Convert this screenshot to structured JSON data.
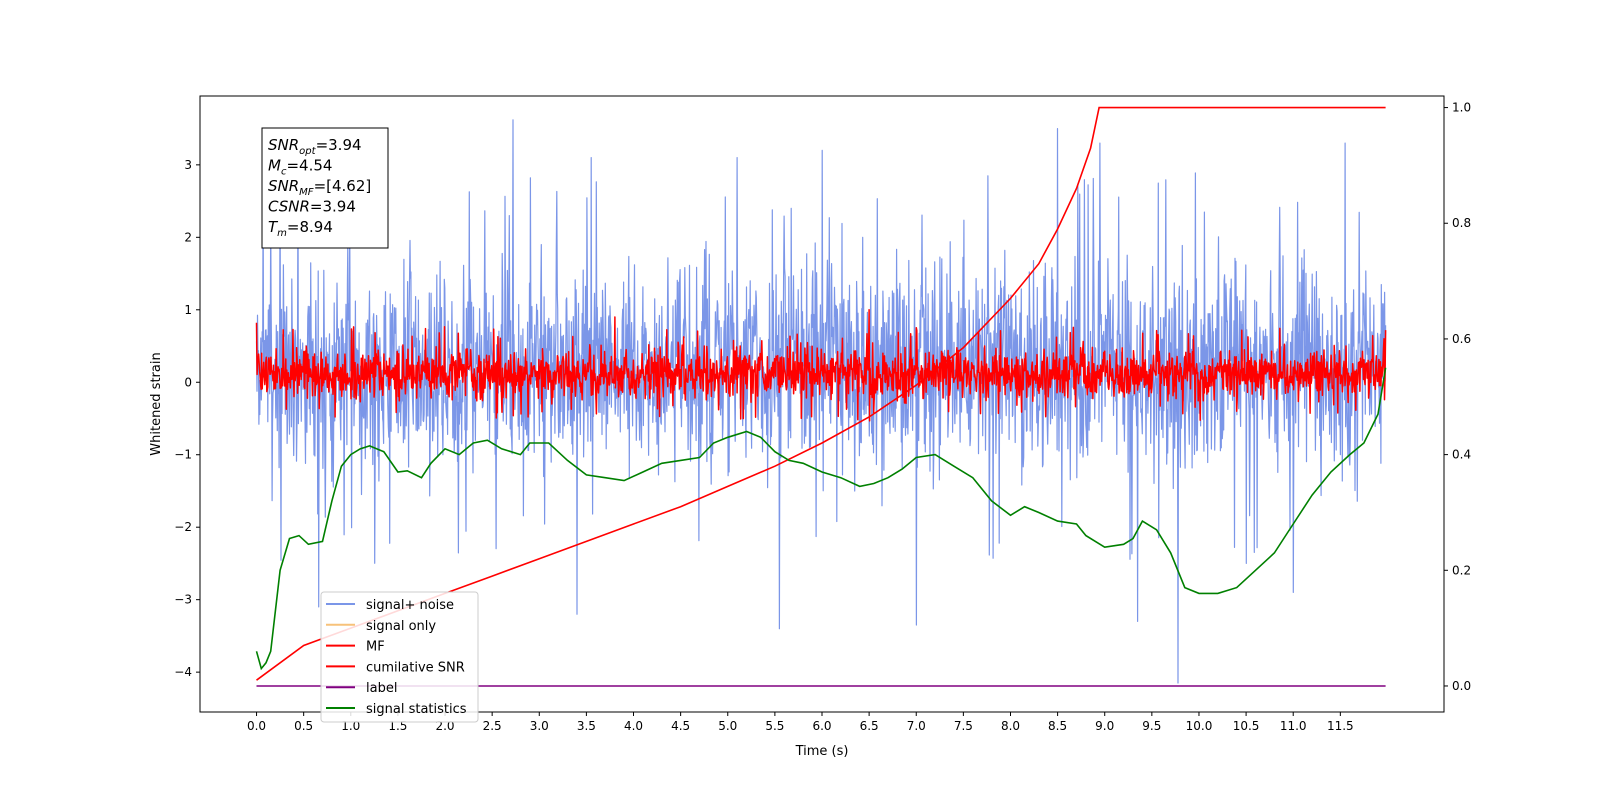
{
  "chart_data": {
    "type": "line",
    "xlabel": "Time (s)",
    "ylabel": "Whitened strain",
    "xlim": [
      -0.6,
      12.6
    ],
    "ylim": [
      -4.55,
      3.95
    ],
    "y2lim": [
      -0.045,
      1.02
    ],
    "xticks": [
      "0.0",
      "0.5",
      "1.0",
      "1.5",
      "2.0",
      "2.5",
      "3.0",
      "3.5",
      "4.0",
      "4.5",
      "5.0",
      "5.5",
      "6.0",
      "6.5",
      "7.0",
      "7.5",
      "8.0",
      "8.5",
      "9.0",
      "9.5",
      "10.0",
      "10.5",
      "11.0",
      "11.5"
    ],
    "yticks": [
      "3",
      "2",
      "1",
      "0",
      "−1",
      "−2",
      "−3",
      "−4"
    ],
    "y2ticks": [
      "1.0",
      "0.8",
      "0.6",
      "0.4",
      "0.2",
      "0.0"
    ],
    "legend_position": "lower-left",
    "annotation": [
      {
        "sym": "SNR",
        "sub": "opt",
        "value": "=3.94"
      },
      {
        "sym": "M",
        "sub": "c",
        "value": "=4.54"
      },
      {
        "sym": "SNR",
        "sub": "MF",
        "value": "=[4.62]"
      },
      {
        "sym": "CSNR",
        "sub": "",
        "value": "=3.94"
      },
      {
        "sym": "T",
        "sub": "m",
        "value": "=8.94"
      }
    ],
    "series": [
      {
        "name": "signal+ noise",
        "color": "#7b96e8",
        "axis": "left",
        "style": "noise",
        "noise_band": [
          -1.6,
          2.0
        ],
        "x_range": [
          0.0,
          11.98
        ],
        "spikes": [
          [
            2.72,
            3.62
          ],
          [
            0.66,
            -3.1
          ],
          [
            3.4,
            -3.2
          ],
          [
            5.55,
            -3.4
          ],
          [
            7.0,
            -3.35
          ],
          [
            9.78,
            -4.15
          ],
          [
            9.35,
            -3.3
          ],
          [
            11.0,
            -2.9
          ],
          [
            3.55,
            3.1
          ],
          [
            6.0,
            3.2
          ],
          [
            8.5,
            3.5
          ],
          [
            11.55,
            3.3
          ],
          [
            5.1,
            3.1
          ],
          [
            8.95,
            3.3
          ]
        ]
      },
      {
        "name": "signal only",
        "color": "#f7c27a",
        "axis": "left",
        "values": []
      },
      {
        "name": "MF",
        "color": "#ff0000",
        "axis": "left",
        "style": "noise",
        "noise_band": [
          -0.32,
          0.55
        ],
        "x_range": [
          0.0,
          11.98
        ],
        "spikes": [
          [
            0.0,
            0.82
          ],
          [
            3.8,
            0.9
          ],
          [
            6.5,
            1.0
          ],
          [
            11.98,
            0.72
          ]
        ]
      },
      {
        "name": "cumilative SNR",
        "color": "#ff0000",
        "axis": "right",
        "x": [
          0.0,
          0.5,
          1.0,
          1.5,
          2.0,
          2.5,
          3.0,
          3.5,
          4.0,
          4.5,
          5.0,
          5.5,
          6.0,
          6.5,
          7.0,
          7.5,
          8.0,
          8.3,
          8.5,
          8.7,
          8.85,
          8.94,
          9.5,
          10.0,
          11.0,
          11.98
        ],
        "values": [
          0.01,
          0.07,
          0.1,
          0.13,
          0.16,
          0.19,
          0.22,
          0.25,
          0.28,
          0.31,
          0.345,
          0.38,
          0.42,
          0.465,
          0.52,
          0.585,
          0.67,
          0.73,
          0.79,
          0.86,
          0.93,
          1.0,
          1.0,
          1.0,
          1.0,
          1.0
        ]
      },
      {
        "name": "label",
        "color": "#800080",
        "axis": "right",
        "x": [
          0.0,
          11.98
        ],
        "values": [
          0.0,
          0.0
        ]
      },
      {
        "name": "signal statistics",
        "color": "#008000",
        "axis": "right",
        "x": [
          0.0,
          0.05,
          0.1,
          0.15,
          0.25,
          0.35,
          0.45,
          0.55,
          0.7,
          0.8,
          0.9,
          1.0,
          1.1,
          1.2,
          1.35,
          1.5,
          1.6,
          1.75,
          1.85,
          2.0,
          2.15,
          2.3,
          2.45,
          2.6,
          2.8,
          2.9,
          3.1,
          3.3,
          3.5,
          3.7,
          3.9,
          4.1,
          4.3,
          4.5,
          4.7,
          4.85,
          5.0,
          5.2,
          5.35,
          5.5,
          5.65,
          5.8,
          6.0,
          6.2,
          6.4,
          6.55,
          6.7,
          6.85,
          7.0,
          7.2,
          7.4,
          7.6,
          7.8,
          8.0,
          8.15,
          8.3,
          8.5,
          8.7,
          8.8,
          9.0,
          9.2,
          9.3,
          9.4,
          9.55,
          9.7,
          9.85,
          10.0,
          10.2,
          10.4,
          10.6,
          10.8,
          11.0,
          11.2,
          11.4,
          11.6,
          11.75,
          11.9,
          11.98
        ],
        "values": [
          0.06,
          0.03,
          0.04,
          0.06,
          0.2,
          0.255,
          0.26,
          0.245,
          0.25,
          0.32,
          0.38,
          0.4,
          0.41,
          0.415,
          0.405,
          0.37,
          0.372,
          0.36,
          0.385,
          0.41,
          0.4,
          0.42,
          0.425,
          0.41,
          0.4,
          0.42,
          0.42,
          0.39,
          0.365,
          0.36,
          0.355,
          0.37,
          0.385,
          0.39,
          0.395,
          0.42,
          0.43,
          0.44,
          0.43,
          0.405,
          0.39,
          0.385,
          0.37,
          0.36,
          0.345,
          0.35,
          0.36,
          0.375,
          0.395,
          0.4,
          0.38,
          0.36,
          0.32,
          0.295,
          0.31,
          0.3,
          0.285,
          0.28,
          0.26,
          0.24,
          0.245,
          0.255,
          0.285,
          0.27,
          0.23,
          0.17,
          0.16,
          0.16,
          0.17,
          0.2,
          0.23,
          0.28,
          0.33,
          0.37,
          0.4,
          0.42,
          0.47,
          0.55
        ]
      }
    ]
  }
}
